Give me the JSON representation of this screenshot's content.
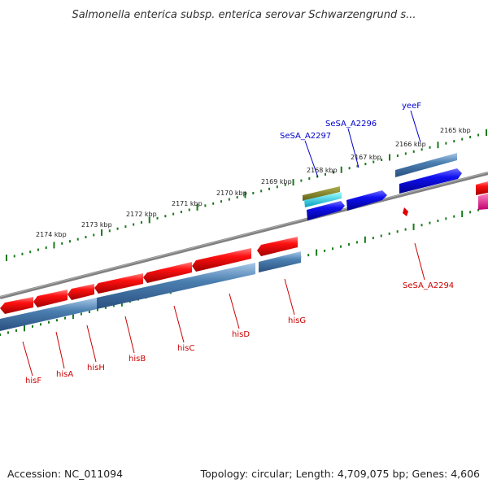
{
  "title": "Salmonella enterica subsp. enterica serovar Schwarzengrund s...",
  "footer": {
    "accession": "Accession: NC_011094",
    "summary": "Topology: circular; Length: 4,709,075 bp; Genes: 4,606"
  },
  "ticks_outer": [
    "2174 kbp",
    "2173 kbp",
    "2172 kbp",
    "2171 kbp",
    "2170 kbp",
    "2169 kbp",
    "2168 kbp",
    "2167 kbp",
    "2166 kbp",
    "2165 kbp"
  ],
  "genes_top": [
    {
      "name": "SeSA_A2297",
      "color": "#0000cc"
    },
    {
      "name": "SeSA_A2296",
      "color": "#0000cc"
    },
    {
      "name": "yeeF",
      "color": "#0000cc"
    }
  ],
  "genes_bottom": [
    {
      "name": "hisF",
      "color": "#cc0000"
    },
    {
      "name": "hisA",
      "color": "#cc0000"
    },
    {
      "name": "hisH",
      "color": "#cc0000"
    },
    {
      "name": "hisB",
      "color": "#cc0000"
    },
    {
      "name": "hisC",
      "color": "#cc0000"
    },
    {
      "name": "hisD",
      "color": "#cc0000"
    },
    {
      "name": "hisG",
      "color": "#cc0000"
    },
    {
      "name": "SeSA_A2294",
      "color": "#cc0000"
    }
  ],
  "colors": {
    "forward_strand": "#0000ee",
    "reverse_strand": "#ee0000",
    "coding_track": "#4a7fb0",
    "backbone": "#808080",
    "tick_dots": "#1a7a1a"
  }
}
